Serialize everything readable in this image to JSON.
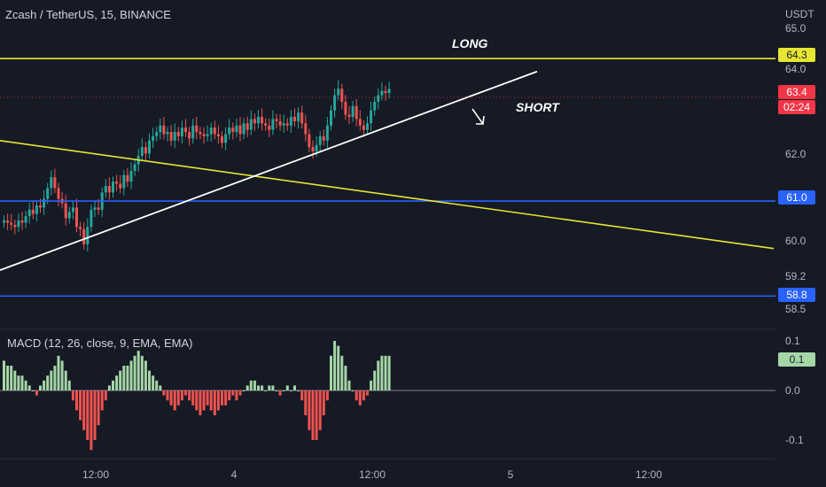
{
  "header": {
    "title": "Zcash / TetherUS, 15, BINANCE"
  },
  "axis": {
    "unit": "USDT"
  },
  "annotations": {
    "long": "LONG",
    "short": "SHORT"
  },
  "colors": {
    "background": "#161a25",
    "up": "#26a69a",
    "down": "#ef5350",
    "yellow_line": "#e6e633",
    "blue_line": "#2962ff",
    "trend_white": "#ffffff",
    "hist_pos": "#a5d6a7",
    "hist_neg": "#ef5350",
    "price_badge": "#f23645",
    "macd_badge": "#a5d6a7"
  },
  "chart_data": [
    {
      "type": "candlestick",
      "title": "Zcash / TetherUS, 15, BINANCE",
      "ylabel": "USDT",
      "ylim": [
        58.3,
        65.3
      ],
      "yticks": [
        "65.0",
        "64.0",
        "62.0",
        "60.0",
        "59.2",
        "58.5"
      ],
      "xticks": [
        "12:00",
        "4",
        "12:00",
        "5",
        "12:00"
      ],
      "close_series": [
        60.55,
        60.5,
        60.45,
        60.4,
        60.55,
        60.5,
        60.65,
        60.8,
        60.7,
        60.9,
        60.85,
        61.05,
        61.3,
        61.55,
        61.3,
        61.05,
        60.95,
        60.6,
        60.75,
        60.85,
        60.4,
        60.35,
        60.0,
        60.4,
        60.8,
        60.85,
        60.8,
        61.2,
        61.35,
        61.2,
        61.45,
        61.4,
        61.3,
        61.6,
        61.45,
        61.7,
        61.85,
        62.05,
        62.25,
        62.1,
        62.4,
        62.5,
        62.6,
        62.75,
        62.55,
        62.6,
        62.4,
        62.6,
        62.5,
        62.7,
        62.6,
        62.45,
        62.75,
        62.6,
        62.55,
        62.5,
        62.55,
        62.7,
        62.55,
        62.5,
        62.35,
        62.55,
        62.7,
        62.6,
        62.75,
        62.55,
        62.8,
        62.65,
        62.9,
        62.8,
        62.95,
        62.8,
        62.75,
        62.65,
        62.9,
        62.85,
        62.75,
        62.8,
        62.75,
        62.95,
        62.85,
        63.05,
        62.8,
        62.55,
        62.25,
        62.15,
        62.3,
        62.5,
        62.4,
        62.75,
        63.1,
        63.45,
        63.6,
        63.3,
        63.0,
        62.95,
        63.2,
        62.9,
        62.75,
        62.65,
        62.8,
        63.1,
        63.3,
        63.45,
        63.55,
        63.5,
        63.6
      ],
      "lines": {
        "yellow_horizontal": 64.3,
        "blue_upper": 61.0,
        "blue_lower": 58.8,
        "yellow_descending": {
          "from": 62.4,
          "to": 59.9
        },
        "white_ascending": {
          "from": 59.4,
          "to": 64.0
        }
      },
      "price_badges": [
        {
          "label": "64.3",
          "value": 64.3,
          "kind": "yellow"
        },
        {
          "label": "63.4",
          "value": 63.4,
          "kind": "red"
        },
        {
          "label": "61.0",
          "value": 61.0,
          "kind": "blue"
        },
        {
          "label": "58.8",
          "value": 58.8,
          "kind": "blue"
        }
      ],
      "countdown": "02:24"
    },
    {
      "type": "bar",
      "title": "MACD (12, 26, close, 9, EMA, EMA)",
      "ylim": [
        -0.13,
        0.12
      ],
      "yticks": [
        "0.1",
        "0.0",
        "-0.1"
      ],
      "badge": "0.1",
      "values": [
        0.06,
        0.05,
        0.05,
        0.04,
        0.03,
        0.03,
        0.02,
        0.01,
        0.0,
        -0.01,
        0.01,
        0.02,
        0.03,
        0.04,
        0.05,
        0.07,
        0.06,
        0.04,
        0.02,
        -0.02,
        -0.04,
        -0.06,
        -0.08,
        -0.1,
        -0.12,
        -0.1,
        -0.07,
        -0.04,
        -0.02,
        0.01,
        0.02,
        0.03,
        0.04,
        0.05,
        0.05,
        0.06,
        0.07,
        0.08,
        0.07,
        0.06,
        0.04,
        0.03,
        0.02,
        0.01,
        -0.01,
        -0.02,
        -0.03,
        -0.04,
        -0.03,
        -0.02,
        -0.01,
        -0.02,
        -0.03,
        -0.04,
        -0.05,
        -0.04,
        -0.03,
        -0.04,
        -0.05,
        -0.04,
        -0.03,
        -0.03,
        -0.02,
        -0.01,
        -0.02,
        -0.01,
        0.0,
        0.01,
        0.02,
        0.02,
        0.01,
        0.01,
        0.0,
        0.01,
        0.01,
        0.0,
        -0.01,
        0.0,
        0.01,
        0.0,
        0.01,
        0.0,
        -0.02,
        -0.05,
        -0.08,
        -0.1,
        -0.1,
        -0.08,
        -0.05,
        -0.02,
        0.07,
        0.1,
        0.09,
        0.07,
        0.05,
        0.02,
        0.0,
        -0.02,
        -0.03,
        -0.02,
        -0.01,
        0.02,
        0.04,
        0.06,
        0.07,
        0.07,
        0.07
      ]
    }
  ]
}
